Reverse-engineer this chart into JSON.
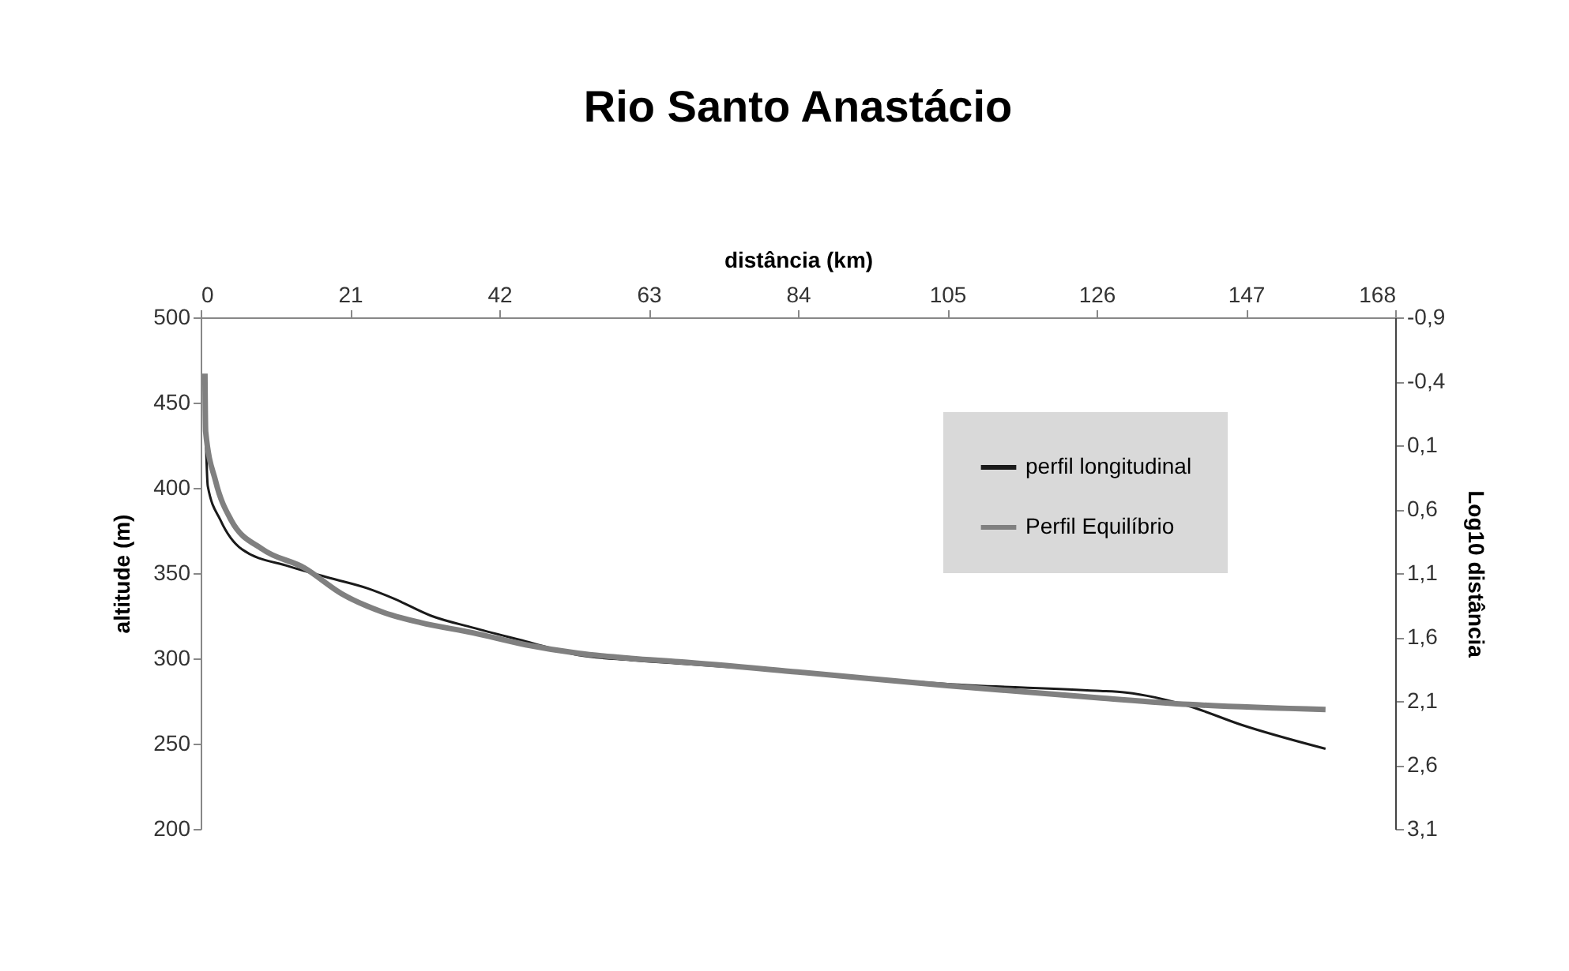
{
  "chart_data": {
    "type": "line",
    "title": "Rio Santo Anastácio",
    "xlabel": "distância (km)",
    "ylabel": "altitude (m)",
    "y2label": "Log10 distância",
    "xlim": [
      0,
      168
    ],
    "xticks": [
      0,
      21,
      42,
      63,
      84,
      105,
      126,
      147,
      168
    ],
    "ylim": [
      200,
      500
    ],
    "yticks": [
      200,
      250,
      300,
      350,
      400,
      450,
      500
    ],
    "y2lim": [
      3.1,
      -0.9
    ],
    "y2ticks": [
      {
        "value": -0.9,
        "label": "-0,9"
      },
      {
        "value": -0.4,
        "label": "-0,4"
      },
      {
        "value": 0.1,
        "label": "0,1"
      },
      {
        "value": 0.6,
        "label": "0,6"
      },
      {
        "value": 1.1,
        "label": "1,1"
      },
      {
        "value": 1.6,
        "label": "1,6"
      },
      {
        "value": 2.1,
        "label": "2,1"
      },
      {
        "value": 2.6,
        "label": "2,6"
      },
      {
        "value": 3.1,
        "label": "3,1"
      }
    ],
    "legend": "top right",
    "grid": false,
    "series": [
      {
        "name": "perfil longitudinal",
        "color": "#1a1a1a",
        "x": [
          0.7,
          1.0,
          2.8,
          5.8,
          12.4,
          18.3,
          23.5,
          27.2,
          32.4,
          38.3,
          45.7,
          53.1,
          60.5,
          67.3,
          84,
          105,
          126,
          130.1,
          139,
          146.4,
          158.2
        ],
        "values": [
          433,
          401,
          381,
          364,
          354,
          347,
          341,
          335,
          325,
          318,
          310,
          302,
          299,
          297,
          292,
          285,
          281,
          280,
          272,
          261,
          247
        ]
      },
      {
        "name": "Perfil Equilíbrio",
        "color": "#808080",
        "x": [
          0.6,
          0.7,
          2.1,
          4.3,
          8.7,
          14.6,
          19.8,
          25.7,
          30.9,
          38.3,
          45.7,
          53.1,
          60.5,
          67.3,
          84,
          105,
          126,
          139,
          158.2
        ],
        "values": [
          467,
          433,
          404,
          381,
          364,
          353,
          338,
          327,
          321,
          315,
          308,
          303,
          300,
          298,
          292,
          284,
          277,
          273,
          270
        ]
      }
    ]
  }
}
